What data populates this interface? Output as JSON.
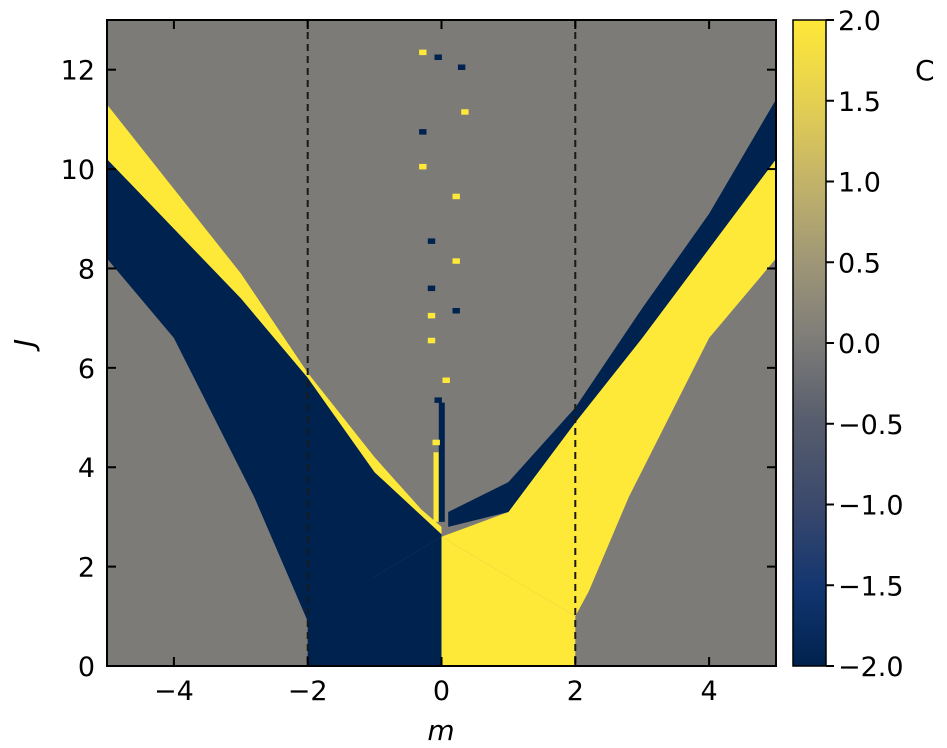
{
  "chart_data": {
    "type": "heatmap",
    "title": "",
    "xlabel": "m",
    "ylabel": "J",
    "xlim": [
      -5,
      5
    ],
    "ylim": [
      0,
      13
    ],
    "xticks": [
      -4,
      -2,
      0,
      2,
      4
    ],
    "yticks": [
      0,
      2,
      4,
      6,
      8,
      10,
      12
    ],
    "xtick_labels": [
      "−4",
      "−2",
      "0",
      "2",
      "4"
    ],
    "ytick_labels": [
      "0",
      "2",
      "4",
      "6",
      "8",
      "10",
      "12"
    ],
    "grid": false,
    "dashed_vlines": [
      -2,
      2
    ],
    "colorbar": {
      "label": "C",
      "range": [
        -2.0,
        2.0
      ],
      "ticks": [
        2.0,
        1.5,
        1.0,
        0.5,
        0.0,
        -0.5,
        -1.0,
        -1.5,
        -2.0
      ],
      "tick_labels": [
        "2.0",
        "1.5",
        "1.0",
        "0.5",
        "0.0",
        "−0.5",
        "−1.0",
        "−1.5",
        "−2.0"
      ],
      "colormap": "cividis",
      "colors": {
        "low": "#00224e",
        "mid": "#7c7b78",
        "high": "#fee838"
      }
    },
    "regions": [
      {
        "value": 0,
        "description": "background"
      },
      {
        "value": -2,
        "m_range": [
          -2,
          0
        ],
        "J_range": [
          0,
          2.6
        ]
      },
      {
        "value": 2,
        "m_range": [
          0,
          2
        ],
        "J_range": [
          0,
          2.6
        ]
      },
      {
        "value": -2,
        "band": "left",
        "lower_J_at_m_-5": 8.2,
        "upper_J_at_m_-5": 10.2
      },
      {
        "value": 2,
        "band": "left",
        "lower_J_at_m_-5": 10.2,
        "upper_J_at_m_-5": 11.3
      },
      {
        "value": 2,
        "band": "right",
        "lower_J_at_m_5": 8.2,
        "upper_J_at_m_5": 10.2
      },
      {
        "value": -2,
        "band": "right",
        "lower_J_at_m_5": 10.2,
        "upper_J_at_m_5": 11.4
      }
    ]
  }
}
